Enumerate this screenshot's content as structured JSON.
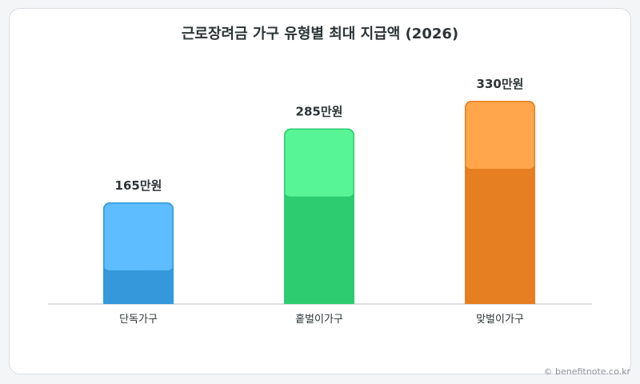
{
  "chart_data": {
    "type": "bar",
    "title": "근로장려금 가구 유형별 최대 지급액 (2026)",
    "xlabel": "",
    "ylabel": "",
    "unit": "만원",
    "categories": [
      "단독가구",
      "홑벌이가구",
      "맞벌이가구"
    ],
    "values": [
      165,
      285,
      330
    ],
    "value_labels": [
      "165만원",
      "285만원",
      "330만원"
    ],
    "colors": [
      {
        "base": "#3498db",
        "top": "#5dbdff"
      },
      {
        "base": "#2ecc71",
        "top": "#58f596"
      },
      {
        "base": "#e67e22",
        "top": "#ffa64c"
      }
    ],
    "ylim": [
      0,
      330
    ],
    "grid": false,
    "legend": "none"
  },
  "watermark": "© benefitnote.co.kr"
}
